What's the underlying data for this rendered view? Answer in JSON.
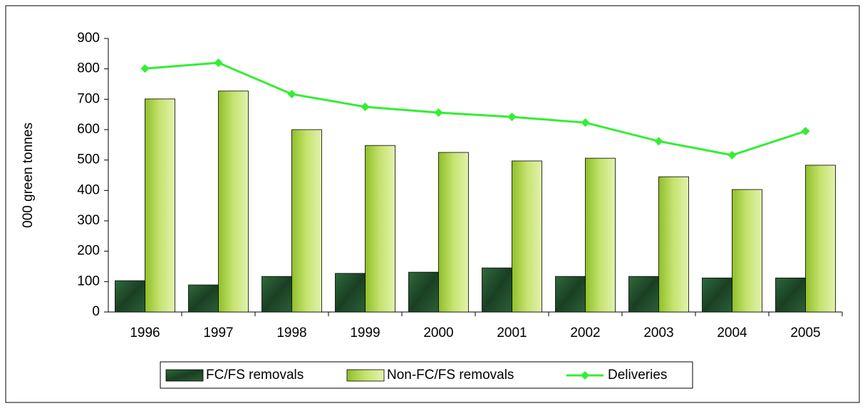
{
  "chart_data": {
    "type": "bar",
    "y_label": "000 green tonnes",
    "categories": [
      "1996",
      "1997",
      "1998",
      "1999",
      "2000",
      "2001",
      "2002",
      "2003",
      "2004",
      "2005"
    ],
    "series": [
      {
        "name": "FC/FS removals",
        "type": "bar",
        "color": "#1f4a2a",
        "values": [
          103,
          89,
          117,
          127,
          131,
          145,
          117,
          117,
          112,
          112
        ]
      },
      {
        "name": "Non-FC/FS removals",
        "type": "bar",
        "color": "#b2d64a",
        "values": [
          701,
          727,
          600,
          548,
          525,
          497,
          506,
          445,
          403,
          483
        ]
      },
      {
        "name": "Deliveries",
        "type": "line",
        "color": "#33ee33",
        "values": [
          801,
          820,
          717,
          675,
          656,
          642,
          623,
          562,
          516,
          595
        ]
      }
    ],
    "ylim": [
      0,
      900
    ],
    "yticks": [
      0,
      100,
      200,
      300,
      400,
      500,
      600,
      700,
      800,
      900
    ],
    "legend": "bottom"
  }
}
